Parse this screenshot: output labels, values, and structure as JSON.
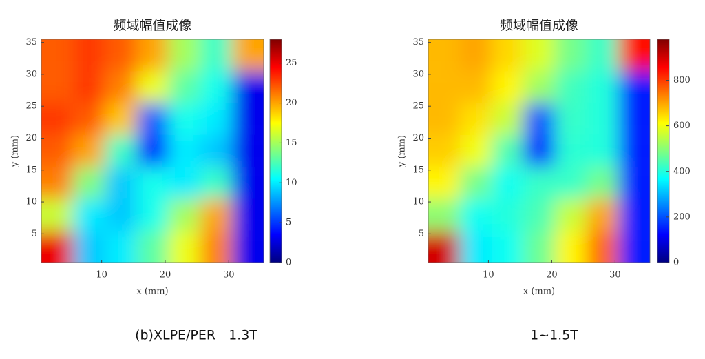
{
  "chart_data": [
    {
      "type": "heatmap",
      "title": "频域幅值成像",
      "xlabel": "x (mm)",
      "ylabel": "y (mm)",
      "colormap": "jet",
      "x": [
        3,
        8,
        13,
        18,
        23,
        28,
        33
      ],
      "y": [
        33,
        28,
        23,
        18,
        13,
        8,
        3
      ],
      "z": [
        [
          22,
          23,
          22,
          20,
          15,
          12,
          20
        ],
        [
          22,
          23,
          21,
          17,
          13,
          11,
          3
        ],
        [
          23,
          22,
          19,
          6,
          11,
          10,
          3
        ],
        [
          22,
          20,
          12,
          4,
          10,
          9,
          3
        ],
        [
          21,
          14,
          9,
          11,
          10,
          12,
          3
        ],
        [
          16,
          10,
          9,
          11,
          15,
          20,
          3
        ],
        [
          25,
          9,
          10,
          13,
          17,
          21,
          3
        ]
      ],
      "xlim": [
        0.5,
        35.5
      ],
      "ylim": [
        0.5,
        35.5
      ],
      "xticks": [
        10,
        20,
        30
      ],
      "yticks": [
        5,
        10,
        15,
        20,
        25,
        30,
        35
      ],
      "clim": [
        0,
        28
      ],
      "cticks": [
        0,
        5,
        10,
        15,
        20,
        25
      ]
    },
    {
      "type": "heatmap",
      "title": "频域幅值成像",
      "xlabel": "x (mm)",
      "ylabel": "y (mm)",
      "colormap": "jet",
      "x": [
        3,
        8,
        13,
        18,
        23,
        28,
        33
      ],
      "y": [
        33,
        28,
        23,
        18,
        13,
        8,
        3
      ],
      "z": [
        [
          680,
          700,
          650,
          580,
          480,
          420,
          850
        ],
        [
          680,
          680,
          620,
          520,
          430,
          400,
          150
        ],
        [
          680,
          640,
          560,
          200,
          420,
          400,
          150
        ],
        [
          660,
          600,
          440,
          150,
          410,
          400,
          150
        ],
        [
          620,
          480,
          380,
          420,
          420,
          480,
          150
        ],
        [
          500,
          380,
          400,
          440,
          560,
          700,
          150
        ],
        [
          900,
          350,
          380,
          470,
          620,
          760,
          150
        ]
      ],
      "xlim": [
        0.5,
        35.5
      ],
      "ylim": [
        0.5,
        35.5
      ],
      "xticks": [
        10,
        20,
        30
      ],
      "yticks": [
        5,
        10,
        15,
        20,
        25,
        30,
        35
      ],
      "clim": [
        0,
        980
      ],
      "cticks": [
        0,
        200,
        400,
        600,
        800
      ]
    }
  ],
  "captions": [
    "(b)XLPE/PER　1.3T",
    "1~1.5T"
  ]
}
